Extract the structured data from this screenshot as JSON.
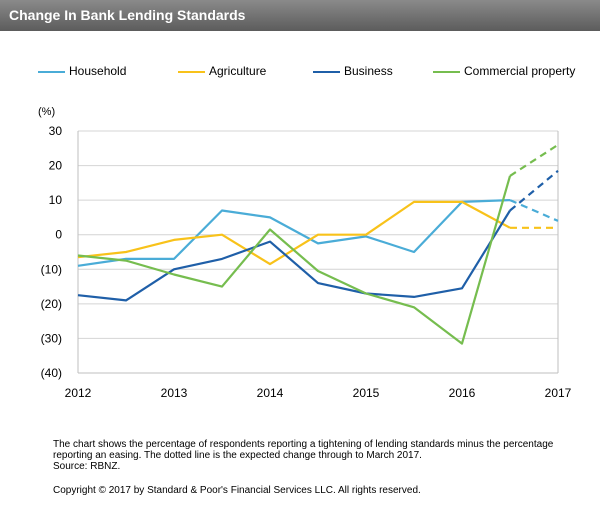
{
  "title": "Change In Bank Lending Standards",
  "footnote": "The chart shows the percentage of respondents reporting a tightening of lending standards minus the percentage reporting an easing. The dotted line is the  expected change through to March 2017.",
  "source": "Source: RBNZ.",
  "copyright": "Copyright © 2017 by Standard & Poor's Financial Services LLC. All rights reserved.",
  "chart_data": {
    "type": "line",
    "ylabel": "(%)",
    "ylim": [
      -40,
      30
    ],
    "yticks": [
      30,
      20,
      10,
      0,
      -10,
      -20,
      -30,
      -40
    ],
    "ytick_labels": [
      "30",
      "20",
      "10",
      "0",
      "(10)",
      "(20)",
      "(30)",
      "(40)"
    ],
    "xlim": [
      2012,
      2017
    ],
    "xticks": [
      2012,
      2013,
      2014,
      2015,
      2016,
      2017
    ],
    "xtick_labels": [
      "2012",
      "2013",
      "2014",
      "2015",
      "2016",
      "2017"
    ],
    "grid": "horizontal",
    "legend_position": "top",
    "series": [
      {
        "name": "Household",
        "color": "#4aacd7",
        "x": [
          2012,
          2012.5,
          2013,
          2013.5,
          2014,
          2014.5,
          2015,
          2015.5,
          2016,
          2016.5
        ],
        "values": [
          -9,
          -7,
          -7,
          7,
          5,
          -2.5,
          -0.5,
          -5,
          9.5,
          10
        ],
        "forecast_x": [
          2016.5,
          2017
        ],
        "forecast_values": [
          10,
          4
        ]
      },
      {
        "name": "Agriculture",
        "color": "#f8c21a",
        "x": [
          2012,
          2012.5,
          2013,
          2013.5,
          2014,
          2014.5,
          2015,
          2015.5,
          2016,
          2016.5
        ],
        "values": [
          -6.5,
          -5,
          -1.5,
          0,
          -8.5,
          0,
          0,
          9.5,
          9.5,
          2
        ],
        "forecast_x": [
          2016.5,
          2017
        ],
        "forecast_values": [
          2,
          2
        ]
      },
      {
        "name": "Business",
        "color": "#1f5fa8",
        "x": [
          2012,
          2012.5,
          2013,
          2013.5,
          2014,
          2014.5,
          2015,
          2015.5,
          2016,
          2016.5
        ],
        "values": [
          -17.5,
          -19,
          -10,
          -7,
          -2,
          -14,
          -17,
          -18,
          -15.5,
          7
        ],
        "forecast_x": [
          2016.5,
          2017
        ],
        "forecast_values": [
          7,
          18.5
        ]
      },
      {
        "name": "Commercial property",
        "color": "#76bd4f",
        "x": [
          2012,
          2012.5,
          2013,
          2013.5,
          2014,
          2014.5,
          2015,
          2015.5,
          2016,
          2016.5
        ],
        "values": [
          -6,
          -7.5,
          -11.5,
          -15,
          1.5,
          -10.5,
          -17,
          -21,
          -31.5,
          17
        ],
        "forecast_x": [
          2016.5,
          2017
        ],
        "forecast_values": [
          17,
          26
        ]
      }
    ]
  }
}
